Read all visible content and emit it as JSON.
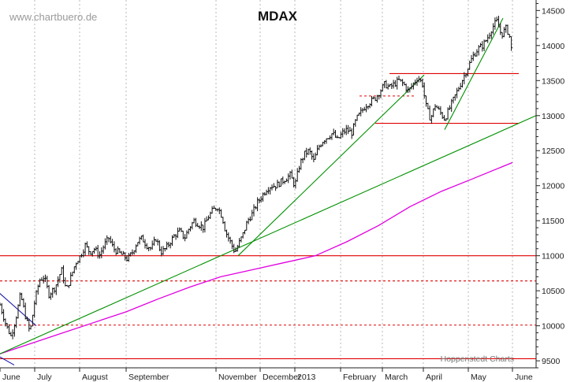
{
  "header": {
    "watermark": "www.chartbuero.de",
    "title": "MDAX",
    "credit": "Hoppenstedt Charts"
  },
  "colors": {
    "price": "#111111",
    "grid": "#b8b8b8",
    "horizontal_line": "#e00000",
    "trendline": "#009000",
    "moving_average": "#e000e0",
    "short_trendline": "#1a1aa8"
  },
  "chart_data": {
    "type": "line",
    "title": "MDAX",
    "y_axis_position": "right",
    "ylim": [
      9400,
      14650
    ],
    "y_ticks": [
      9500,
      10000,
      10500,
      11000,
      11500,
      12000,
      12500,
      13000,
      13500,
      14000,
      14500
    ],
    "grid": true,
    "x_ticks": [
      {
        "label": "June",
        "t": 0
      },
      {
        "label": "July",
        "t": 44
      },
      {
        "label": "August",
        "t": 101
      },
      {
        "label": "September",
        "t": 160
      },
      {
        "label": "November",
        "t": 274
      },
      {
        "label": "December",
        "t": 330
      },
      {
        "label": "2013",
        "t": 374
      },
      {
        "label": "February",
        "t": 432
      },
      {
        "label": "March",
        "t": 485
      },
      {
        "label": "April",
        "t": 537
      },
      {
        "label": "May",
        "t": 594
      },
      {
        "label": "June",
        "t": 650
      }
    ],
    "series": [
      {
        "kind": "price",
        "points": [
          [
            0,
            10300
          ],
          [
            8,
            10000
          ],
          [
            14,
            9850
          ],
          [
            20,
            10100
          ],
          [
            26,
            10450
          ],
          [
            32,
            10150
          ],
          [
            38,
            9900
          ],
          [
            44,
            10350
          ],
          [
            50,
            10650
          ],
          [
            56,
            10700
          ],
          [
            62,
            10450
          ],
          [
            70,
            10550
          ],
          [
            78,
            10800
          ],
          [
            84,
            10500
          ],
          [
            90,
            10700
          ],
          [
            96,
            10900
          ],
          [
            102,
            11000
          ],
          [
            108,
            11150
          ],
          [
            114,
            11050
          ],
          [
            120,
            11100
          ],
          [
            126,
            11000
          ],
          [
            132,
            11150
          ],
          [
            138,
            11250
          ],
          [
            144,
            11100
          ],
          [
            150,
            11050
          ],
          [
            156,
            11000
          ],
          [
            162,
            10950
          ],
          [
            168,
            11050
          ],
          [
            174,
            11200
          ],
          [
            180,
            11250
          ],
          [
            186,
            11150
          ],
          [
            192,
            11100
          ],
          [
            198,
            11250
          ],
          [
            204,
            11050
          ],
          [
            210,
            11100
          ],
          [
            216,
            11200
          ],
          [
            222,
            11300
          ],
          [
            228,
            11350
          ],
          [
            234,
            11250
          ],
          [
            240,
            11400
          ],
          [
            246,
            11500
          ],
          [
            252,
            11450
          ],
          [
            258,
            11400
          ],
          [
            264,
            11550
          ],
          [
            270,
            11650
          ],
          [
            276,
            11700
          ],
          [
            282,
            11550
          ],
          [
            286,
            11350
          ],
          [
            292,
            11200
          ],
          [
            298,
            11050
          ],
          [
            302,
            11150
          ],
          [
            308,
            11300
          ],
          [
            314,
            11500
          ],
          [
            320,
            11600
          ],
          [
            326,
            11750
          ],
          [
            332,
            11850
          ],
          [
            338,
            11950
          ],
          [
            344,
            12000
          ],
          [
            350,
            12000
          ],
          [
            356,
            12050
          ],
          [
            362,
            12100
          ],
          [
            368,
            12150
          ],
          [
            374,
            12000
          ],
          [
            380,
            12300
          ],
          [
            386,
            12450
          ],
          [
            392,
            12500
          ],
          [
            398,
            12350
          ],
          [
            404,
            12550
          ],
          [
            410,
            12650
          ],
          [
            416,
            12700
          ],
          [
            422,
            12750
          ],
          [
            428,
            12650
          ],
          [
            434,
            12750
          ],
          [
            440,
            12800
          ],
          [
            446,
            12750
          ],
          [
            452,
            12950
          ],
          [
            458,
            13050
          ],
          [
            464,
            13150
          ],
          [
            470,
            13200
          ],
          [
            476,
            13250
          ],
          [
            482,
            13350
          ],
          [
            488,
            13450
          ],
          [
            494,
            13400
          ],
          [
            500,
            13450
          ],
          [
            506,
            13500
          ],
          [
            512,
            13450
          ],
          [
            518,
            13350
          ],
          [
            524,
            13450
          ],
          [
            530,
            13550
          ],
          [
            536,
            13450
          ],
          [
            540,
            13150
          ],
          [
            546,
            12950
          ],
          [
            552,
            13150
          ],
          [
            558,
            13050
          ],
          [
            564,
            12950
          ],
          [
            570,
            13100
          ],
          [
            576,
            13250
          ],
          [
            582,
            13400
          ],
          [
            588,
            13550
          ],
          [
            594,
            13700
          ],
          [
            600,
            13850
          ],
          [
            606,
            13950
          ],
          [
            612,
            14000
          ],
          [
            618,
            14100
          ],
          [
            624,
            14250
          ],
          [
            630,
            14350
          ],
          [
            636,
            14150
          ],
          [
            642,
            14250
          ],
          [
            646,
            14150
          ],
          [
            650,
            13850
          ]
        ]
      },
      {
        "kind": "moving_average",
        "points": [
          [
            0,
            9600
          ],
          [
            40,
            9750
          ],
          [
            80,
            9900
          ],
          [
            120,
            10050
          ],
          [
            160,
            10200
          ],
          [
            200,
            10380
          ],
          [
            240,
            10550
          ],
          [
            280,
            10700
          ],
          [
            320,
            10800
          ],
          [
            360,
            10900
          ],
          [
            400,
            11000
          ],
          [
            440,
            11200
          ],
          [
            480,
            11430
          ],
          [
            520,
            11700
          ],
          [
            560,
            11920
          ],
          [
            600,
            12100
          ],
          [
            650,
            12330
          ]
        ]
      }
    ],
    "horizontal_lines": [
      {
        "y": 11000,
        "style": "solid",
        "t_start": 0,
        "t_end": 680
      },
      {
        "y": 9530,
        "style": "solid",
        "t_start": 0,
        "t_end": 680
      },
      {
        "y": 10640,
        "style": "dashed",
        "t_start": 0,
        "t_end": 680
      },
      {
        "y": 10010,
        "style": "dashed",
        "t_start": 0,
        "t_end": 680
      },
      {
        "y": 13600,
        "style": "solid",
        "t_start": 494,
        "t_end": 658
      },
      {
        "y": 12890,
        "style": "solid",
        "t_start": 476,
        "t_end": 658
      },
      {
        "y": 13280,
        "style": "dashed",
        "t_start": 456,
        "t_end": 528
      }
    ],
    "trendlines": [
      {
        "color_key": "trendline",
        "from": [
          0,
          9600
        ],
        "to": [
          680,
          13000
        ]
      },
      {
        "color_key": "trendline",
        "from": [
          302,
          11000
        ],
        "to": [
          538,
          13580
        ]
      },
      {
        "color_key": "trendline",
        "from": [
          564,
          12800
        ],
        "to": [
          638,
          14390
        ]
      },
      {
        "color_key": "short_trendline",
        "from": [
          -4,
          10500
        ],
        "to": [
          46,
          10000
        ]
      },
      {
        "color_key": "short_trendline",
        "from": [
          -4,
          9580
        ],
        "to": [
          18,
          9440
        ]
      }
    ]
  }
}
